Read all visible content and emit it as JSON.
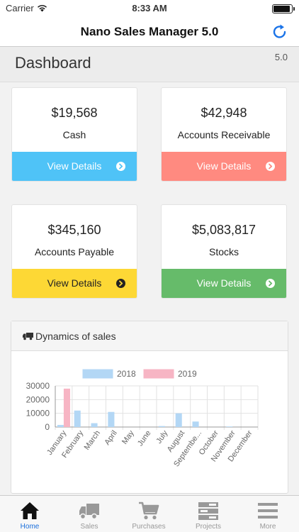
{
  "status_bar": {
    "carrier": "Carrier",
    "time": "8:33 AM",
    "battery_level": 0.92
  },
  "nav": {
    "title": "Nano Sales Manager 5.0",
    "refresh_icon": "refresh-icon"
  },
  "header": {
    "title": "Dashboard",
    "version": "5.0"
  },
  "cards": [
    {
      "amount": "$19,568",
      "label": "Cash",
      "button": "View Details",
      "color": "#4fc3f7",
      "text_color": "#ffffff"
    },
    {
      "amount": "$42,948",
      "label": "Accounts Receivable",
      "button": "View Details",
      "color": "#ff8a80",
      "text_color": "#ffffff"
    },
    {
      "amount": "$345,160",
      "label": "Accounts Payable",
      "button": "View Details",
      "color": "#fdd835",
      "text_color": "#222222"
    },
    {
      "amount": "$5,083,817",
      "label": "Stocks",
      "button": "View Details",
      "color": "#66bb6a",
      "text_color": "#ffffff"
    }
  ],
  "sales_panel": {
    "title": "Dynamics of sales",
    "icon": "truck-icon"
  },
  "chart_data": {
    "type": "bar",
    "title": "",
    "categories": [
      "January",
      "February",
      "March",
      "April",
      "May",
      "June",
      "July",
      "August",
      "Septembe...",
      "October",
      "November",
      "December"
    ],
    "series": [
      {
        "name": "2018",
        "values": [
          1500,
          12000,
          2800,
          11000,
          0,
          0,
          700,
          10000,
          4000,
          0,
          400,
          0
        ],
        "color": "#b3d7f5"
      },
      {
        "name": "2019",
        "values": [
          28000,
          0,
          0,
          0,
          0,
          0,
          0,
          0,
          0,
          0,
          0,
          0
        ],
        "color": "#f7b5c4"
      }
    ],
    "yticks": [
      "30000",
      "20000",
      "10000",
      "0"
    ],
    "ylim": [
      0,
      30000
    ],
    "legend_position": "top",
    "grid": true
  },
  "tabs": [
    {
      "label": "Home",
      "icon": "home-icon",
      "active": true
    },
    {
      "label": "Sales",
      "icon": "truck-icon",
      "active": false
    },
    {
      "label": "Purchases",
      "icon": "cart-icon",
      "active": false
    },
    {
      "label": "Projects",
      "icon": "projects-icon",
      "active": false
    },
    {
      "label": "More",
      "icon": "menu-icon",
      "active": false
    }
  ]
}
